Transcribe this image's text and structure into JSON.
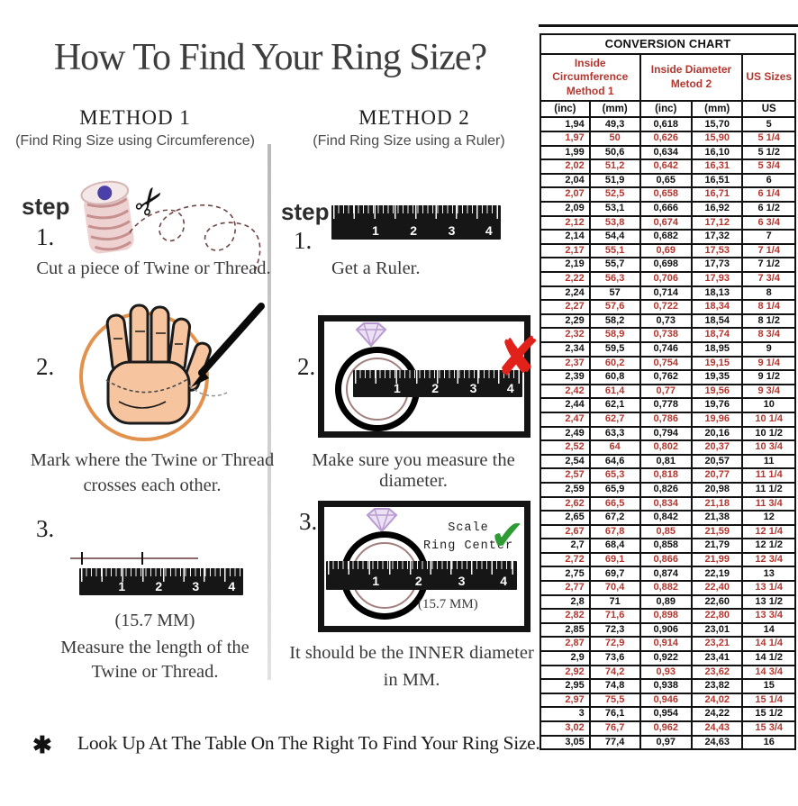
{
  "title": "How To Find Your Ring Size?",
  "ruler_numbers": [
    "1",
    "2",
    "3",
    "4"
  ],
  "method1": {
    "heading": "METHOD 1",
    "subheading": "(Find Ring Size using Circumference)",
    "step_label": "step",
    "step1": {
      "num": "1.",
      "caption": "Cut a piece of Twine or Thread."
    },
    "step2": {
      "num": "2.",
      "caption_line1": "Mark where the Twine or Thread",
      "caption_line2": "crosses each other."
    },
    "step3": {
      "num": "3.",
      "measurement": "(15.7 MM)",
      "caption_line1": "Measure the length of the",
      "caption_line2": "Twine or Thread."
    }
  },
  "method2": {
    "heading": "METHOD 2",
    "subheading": "(Find Ring Size using a Ruler)",
    "step_label": "step",
    "step1": {
      "num": "1.",
      "caption": "Get a Ruler."
    },
    "step2": {
      "num": "2.",
      "caption": "Make sure you measure the diameter.",
      "x_mark": "✘"
    },
    "step3": {
      "num": "3.",
      "scale_label_line1": "Scale",
      "scale_label_line2": "Ring Center",
      "check_mark": "✔",
      "measurement": "(15.7 MM)",
      "caption_line1": "It should be the INNER diameter",
      "caption_line2": "in MM."
    }
  },
  "footer": {
    "asterisk": "✱",
    "text": "Look Up At The Table On The Right To Find Your Ring Size."
  },
  "icons": {
    "scissors": "✂"
  },
  "colors": {
    "table_red": "#b5362e",
    "x_red": "#e2221a",
    "check_green": "#2e9b35",
    "circle_orange": "#e0863a",
    "hand_skin": "#f6c49e"
  },
  "conversion_chart": {
    "title": "CONVERSION CHART",
    "group_headers": [
      {
        "line1": "Inside Circumference",
        "line2": "Method 1"
      },
      {
        "line1": "Inside Diameter",
        "line2": "Metod 2"
      },
      {
        "line1": "US Sizes",
        "line2": ""
      }
    ],
    "unit_headers": [
      "(inc)",
      "(mm)",
      "(inc)",
      "(mm)",
      "US"
    ],
    "rows": [
      [
        "1,94",
        "49,3",
        "0,618",
        "15,70",
        "5"
      ],
      [
        "1,97",
        "50",
        "0,626",
        "15,90",
        "5 1/4"
      ],
      [
        "1,99",
        "50,6",
        "0,634",
        "16,10",
        "5 1/2"
      ],
      [
        "2,02",
        "51,2",
        "0,642",
        "16,31",
        "5 3/4"
      ],
      [
        "2,04",
        "51,9",
        "0,65",
        "16,51",
        "6"
      ],
      [
        "2,07",
        "52,5",
        "0,658",
        "16,71",
        "6 1/4"
      ],
      [
        "2,09",
        "53,1",
        "0,666",
        "16,92",
        "6 1/2"
      ],
      [
        "2,12",
        "53,8",
        "0,674",
        "17,12",
        "6 3/4"
      ],
      [
        "2,14",
        "54,4",
        "0,682",
        "17,32",
        "7"
      ],
      [
        "2,17",
        "55,1",
        "0,69",
        "17,53",
        "7 1/4"
      ],
      [
        "2,19",
        "55,7",
        "0,698",
        "17,73",
        "7 1/2"
      ],
      [
        "2,22",
        "56,3",
        "0,706",
        "17,93",
        "7 3/4"
      ],
      [
        "2,24",
        "57",
        "0,714",
        "18,13",
        "8"
      ],
      [
        "2,27",
        "57,6",
        "0,722",
        "18,34",
        "8 1/4"
      ],
      [
        "2,29",
        "58,2",
        "0,73",
        "18,54",
        "8 1/2"
      ],
      [
        "2,32",
        "58,9",
        "0,738",
        "18,74",
        "8 3/4"
      ],
      [
        "2,34",
        "59,5",
        "0,746",
        "18,95",
        "9"
      ],
      [
        "2,37",
        "60,2",
        "0,754",
        "19,15",
        "9 1/4"
      ],
      [
        "2,39",
        "60,8",
        "0,762",
        "19,35",
        "9 1/2"
      ],
      [
        "2,42",
        "61,4",
        "0,77",
        "19,56",
        "9 3/4"
      ],
      [
        "2,44",
        "62,1",
        "0,778",
        "19,76",
        "10"
      ],
      [
        "2,47",
        "62,7",
        "0,786",
        "19,96",
        "10 1/4"
      ],
      [
        "2,49",
        "63,3",
        "0,794",
        "20,16",
        "10 1/2"
      ],
      [
        "2,52",
        "64",
        "0,802",
        "20,37",
        "10 3/4"
      ],
      [
        "2,54",
        "64,6",
        "0,81",
        "20,57",
        "11"
      ],
      [
        "2,57",
        "65,3",
        "0,818",
        "20,77",
        "11 1/4"
      ],
      [
        "2,59",
        "65,9",
        "0,826",
        "20,98",
        "11 1/2"
      ],
      [
        "2,62",
        "66,5",
        "0,834",
        "21,18",
        "11 3/4"
      ],
      [
        "2,65",
        "67,2",
        "0,842",
        "21,38",
        "12"
      ],
      [
        "2,67",
        "67,8",
        "0,85",
        "21,59",
        "12 1/4"
      ],
      [
        "2,7",
        "68,4",
        "0,858",
        "21,79",
        "12 1/2"
      ],
      [
        "2,72",
        "69,1",
        "0,866",
        "21,99",
        "12 3/4"
      ],
      [
        "2,75",
        "69,7",
        "0,874",
        "22,19",
        "13"
      ],
      [
        "2,77",
        "70,4",
        "0,882",
        "22,40",
        "13 1/4"
      ],
      [
        "2,8",
        "71",
        "0,89",
        "22,60",
        "13 1/2"
      ],
      [
        "2,82",
        "71,6",
        "0,898",
        "22,80",
        "13 3/4"
      ],
      [
        "2,85",
        "72,3",
        "0,906",
        "23,01",
        "14"
      ],
      [
        "2,87",
        "72,9",
        "0,914",
        "23,21",
        "14 1/4"
      ],
      [
        "2,9",
        "73,6",
        "0,922",
        "23,41",
        "14 1/2"
      ],
      [
        "2,92",
        "74,2",
        "0,93",
        "23,62",
        "14 3/4"
      ],
      [
        "2,95",
        "74,8",
        "0,938",
        "23,82",
        "15"
      ],
      [
        "2,97",
        "75,5",
        "0,946",
        "24,02",
        "15 1/4"
      ],
      [
        "3",
        "76,1",
        "0,954",
        "24,22",
        "15 1/2"
      ],
      [
        "3,02",
        "76,7",
        "0,962",
        "24,43",
        "15 3/4"
      ],
      [
        "3,05",
        "77,4",
        "0,97",
        "24,63",
        "16"
      ]
    ]
  }
}
